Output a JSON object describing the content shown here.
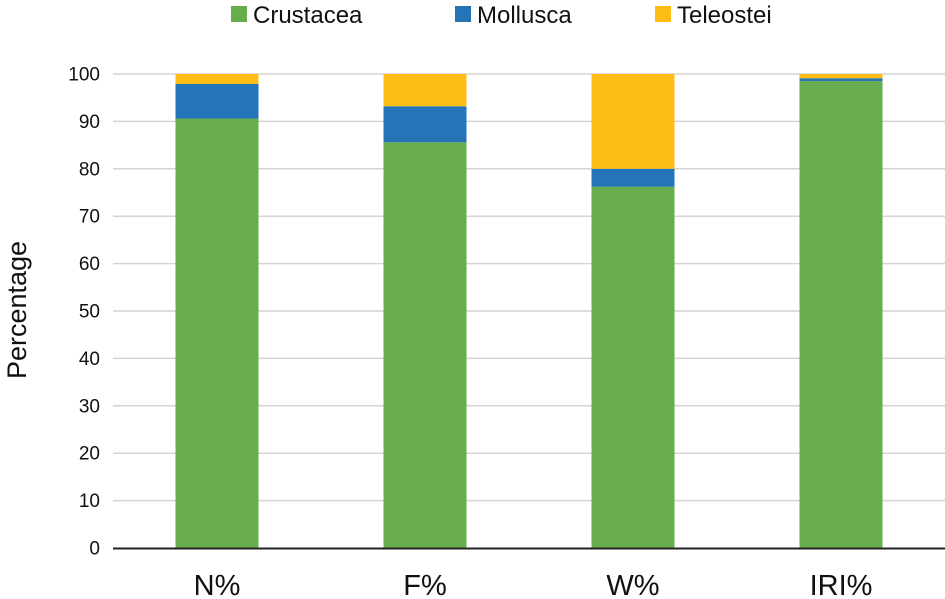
{
  "chart_data": {
    "type": "bar",
    "stacked": true,
    "categories": [
      "N%",
      "F%",
      "W%",
      "IRI%"
    ],
    "series": [
      {
        "name": "Crustacea",
        "color": "#68AD4D",
        "values": [
          90.6,
          85.6,
          76.2,
          98.5
        ]
      },
      {
        "name": "Mollusca",
        "color": "#2474B8",
        "values": [
          7.3,
          7.6,
          3.8,
          0.6
        ]
      },
      {
        "name": "Teleostei",
        "color": "#FDBD16",
        "values": [
          2.1,
          6.8,
          20.0,
          0.9
        ]
      }
    ],
    "title": "",
    "xlabel": "",
    "ylabel": "Percentage",
    "ylim": [
      0,
      100
    ],
    "yticks": [
      "0",
      "10",
      "20",
      "30",
      "40",
      "50",
      "60",
      "70",
      "80",
      "90",
      "100"
    ],
    "grid": true,
    "legend": "top"
  }
}
